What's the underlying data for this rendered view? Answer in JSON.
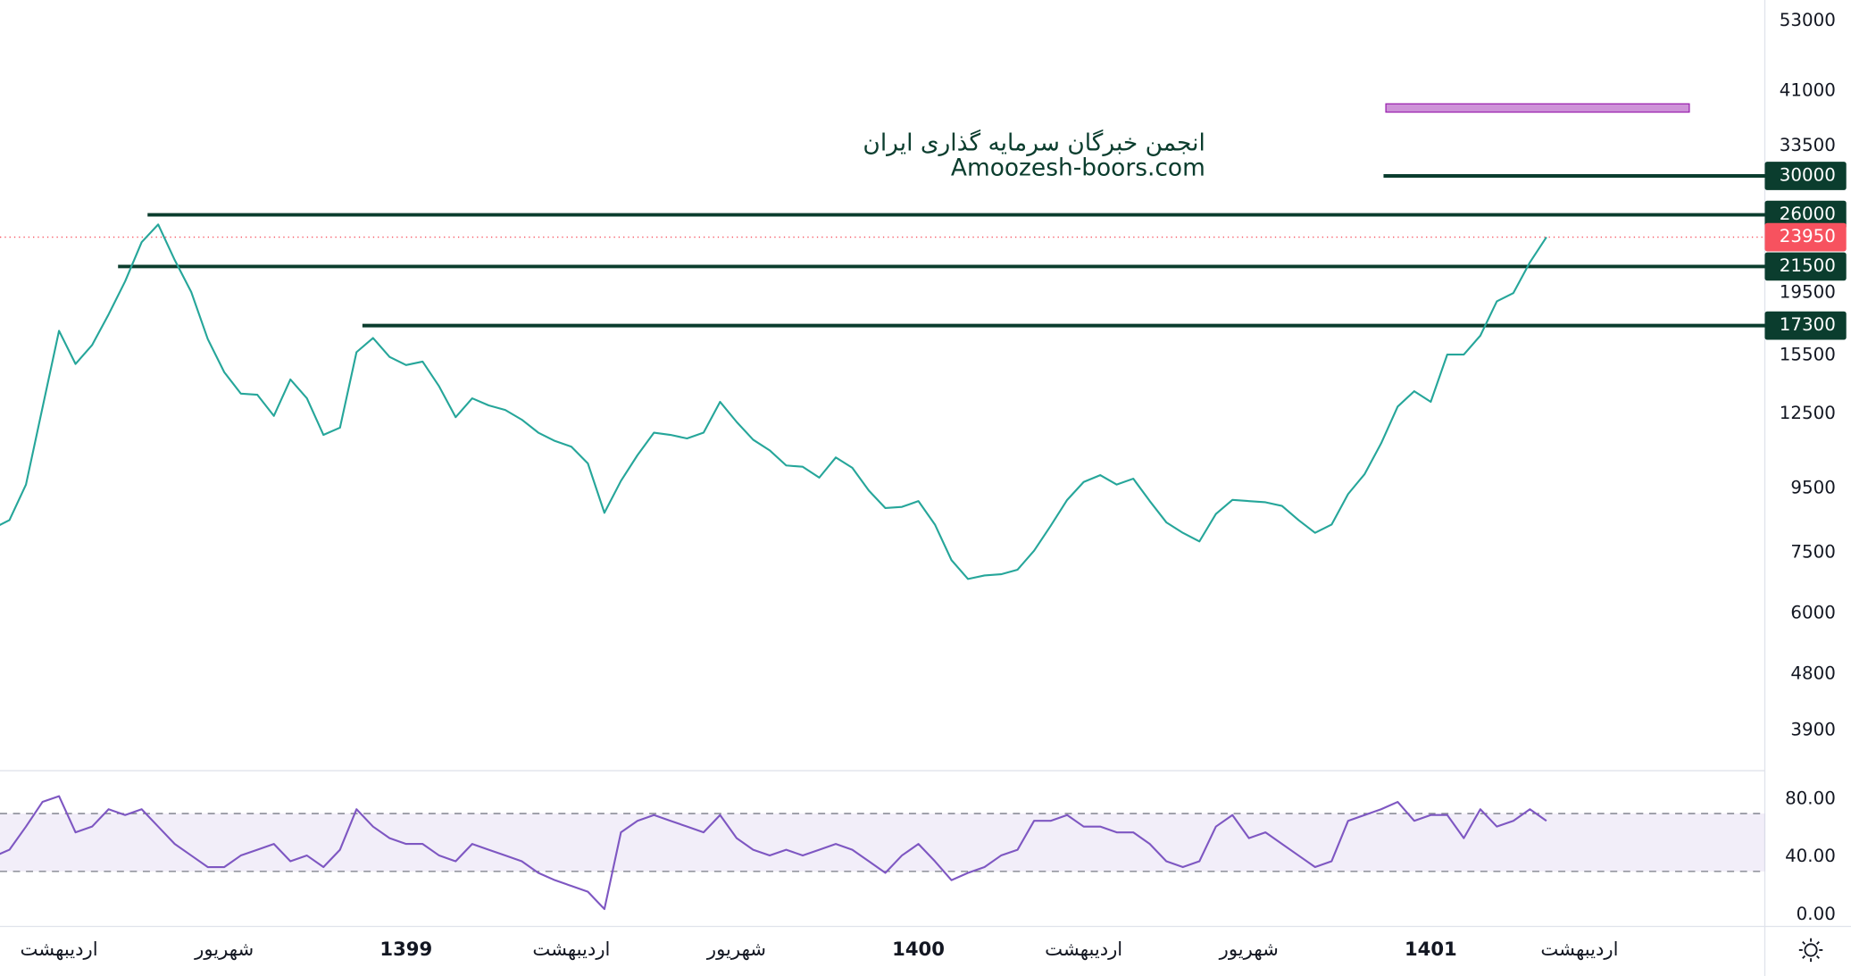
{
  "chart_data": [
    {
      "type": "line",
      "log_scale": true,
      "color": "#26a69a",
      "categories": [
        null,
        null,
        null,
        null,
        "اردیبهشت",
        null,
        null,
        null,
        null,
        null,
        null,
        null,
        null,
        null,
        "شهریور",
        null,
        null,
        null,
        null,
        null,
        null,
        null,
        null,
        null,
        null,
        "1399",
        null,
        null,
        null,
        null,
        null,
        null,
        null,
        null,
        null,
        "اردیبهشت",
        null,
        null,
        null,
        null,
        null,
        null,
        null,
        null,
        null,
        "شهریور",
        null,
        null,
        null,
        null,
        null,
        null,
        null,
        null,
        null,
        null,
        "1400",
        null,
        null,
        null,
        null,
        null,
        null,
        null,
        null,
        null,
        "اردیبهشت",
        null,
        null,
        null,
        null,
        null,
        null,
        null,
        null,
        null,
        "شهریور",
        null,
        null,
        null,
        null,
        null,
        null,
        null,
        null,
        null,
        null,
        "1401",
        null,
        null,
        null,
        null,
        null,
        null,
        null,
        null,
        "اردیبهشت"
      ],
      "values": [
        8200,
        8460,
        9640,
        12790,
        16970,
        15020,
        16100,
        18030,
        20360,
        23510,
        25090,
        22020,
        19580,
        16460,
        14570,
        13470,
        13410,
        12410,
        14190,
        13240,
        11570,
        11880,
        15690,
        16530,
        15420,
        14960,
        15150,
        13830,
        12350,
        13240,
        12900,
        12680,
        12240,
        11670,
        11320,
        11080,
        10420,
        8690,
        9770,
        10740,
        11670,
        11570,
        11420,
        11670,
        13070,
        12140,
        11370,
        10930,
        10340,
        10290,
        9890,
        10650,
        10250,
        9430,
        8840,
        8880,
        9070,
        8320,
        7300,
        6810,
        6900,
        6930,
        7050,
        7560,
        8280,
        9110,
        9730,
        9980,
        9640,
        9850,
        9070,
        8390,
        8070,
        7820,
        8650,
        9110,
        9070,
        9030,
        8910,
        8460,
        8070,
        8320,
        9310,
        10020,
        11220,
        12840,
        13590,
        13070,
        15550,
        15550,
        16670,
        18920,
        19500,
        21830,
        23950,
        null,
        null
      ],
      "ylim": [
        3380,
        57300
      ],
      "yticks": [
        53000,
        41000,
        33500,
        19500,
        15500,
        12500,
        9500,
        7500,
        6000,
        4800,
        3900
      ],
      "levels": [
        30000,
        26000,
        21500,
        17300
      ],
      "level_color": "#0b3d2e",
      "last_price": 23950,
      "last_price_color": "#f7525f",
      "watermark": [
        "انجمن خبرگان سرمایه گذاری ایران",
        "Amoozesh-boors.com"
      ]
    },
    {
      "type": "line",
      "color": "#7e57c2",
      "values": [
        40,
        45,
        61,
        78,
        82,
        57,
        61,
        73,
        69,
        73,
        61,
        49,
        41,
        33,
        33,
        41,
        45,
        49,
        37,
        41,
        33,
        45,
        73,
        61,
        53,
        49,
        49,
        41,
        37,
        49,
        45,
        41,
        37,
        29,
        24,
        20,
        16,
        4,
        57,
        65,
        69,
        65,
        61,
        57,
        69,
        53,
        45,
        41,
        45,
        41,
        45,
        49,
        45,
        37,
        29,
        41,
        49,
        37,
        24,
        29,
        33,
        41,
        45,
        65,
        65,
        69,
        61,
        61,
        57,
        57,
        49,
        37,
        33,
        37,
        61,
        69,
        53,
        57,
        49,
        41,
        33,
        37,
        65,
        69,
        73,
        78,
        65,
        69,
        69,
        53,
        73,
        61,
        65,
        73,
        65,
        null,
        null
      ],
      "ylim": [
        -8,
        98
      ],
      "yticks": [
        {
          "value": 80,
          "label": "80.00"
        },
        {
          "value": 40,
          "label": "40.00"
        },
        {
          "value": 0,
          "label": "0.00"
        }
      ],
      "bands": [
        30,
        70
      ]
    }
  ]
}
